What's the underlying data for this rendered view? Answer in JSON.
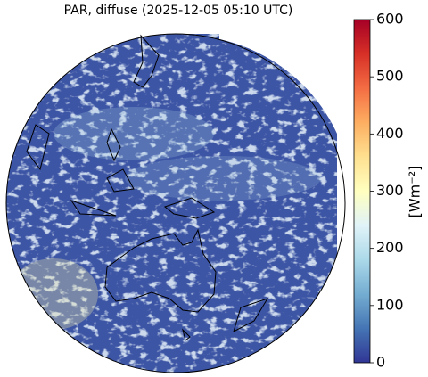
{
  "title": "PAR, diffuse (2025-12-05 05:10 UTC)",
  "colorbar": {
    "label": "[Wm⁻²]",
    "lim": [
      0,
      600
    ],
    "ticks": [
      0,
      100,
      200,
      300,
      400,
      500,
      600
    ]
  }
}
